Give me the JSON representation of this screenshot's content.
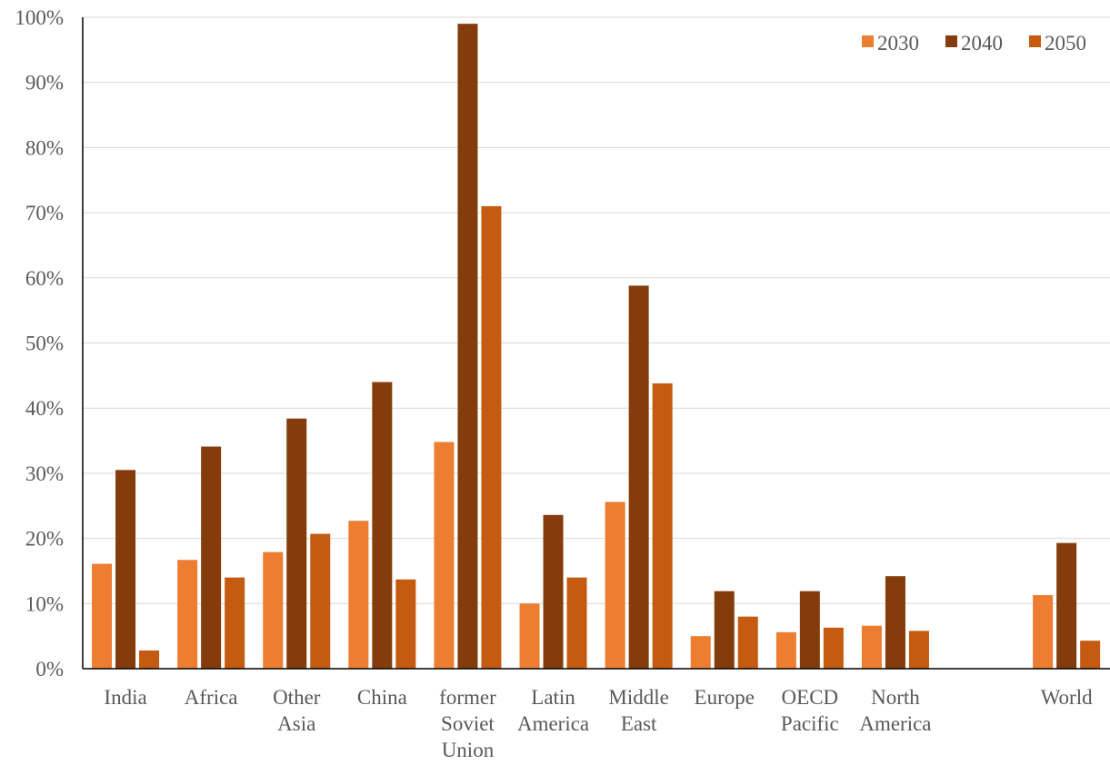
{
  "chart_data": {
    "type": "bar",
    "title": "",
    "xlabel": "",
    "ylabel": "",
    "ylim": [
      0,
      100
    ],
    "y_tick_step": 10,
    "y_tick_suffix": "%",
    "grid": true,
    "legend_position": "top-right",
    "categories": [
      "India",
      "Africa",
      "Other Asia",
      "China",
      "former Soviet Union",
      "Latin America",
      "Middle East",
      "Europe",
      "OECD Pacific",
      "North America",
      "",
      "World"
    ],
    "category_label_lines": [
      [
        "India"
      ],
      [
        "Africa"
      ],
      [
        "Other",
        "Asia"
      ],
      [
        "China"
      ],
      [
        "former",
        "Soviet",
        "Union"
      ],
      [
        "Latin",
        "America"
      ],
      [
        "Middle",
        "East"
      ],
      [
        "Europe"
      ],
      [
        "OECD",
        "Pacific"
      ],
      [
        "North",
        "America"
      ],
      [],
      [
        "World"
      ]
    ],
    "series": [
      {
        "name": "2030",
        "color": "#ED7D31",
        "values": [
          16.1,
          16.7,
          17.9,
          22.7,
          34.8,
          10.0,
          25.6,
          5.0,
          5.6,
          6.6,
          null,
          11.3
        ]
      },
      {
        "name": "2040",
        "color": "#843C0C",
        "values": [
          30.5,
          34.1,
          38.4,
          44.0,
          99.0,
          23.6,
          58.8,
          11.9,
          11.9,
          14.2,
          null,
          19.3
        ]
      },
      {
        "name": "2050",
        "color": "#C55A11",
        "values": [
          2.8,
          14.0,
          20.7,
          13.7,
          71.0,
          14.0,
          43.8,
          8.0,
          6.3,
          5.8,
          null,
          4.3
        ]
      }
    ]
  }
}
